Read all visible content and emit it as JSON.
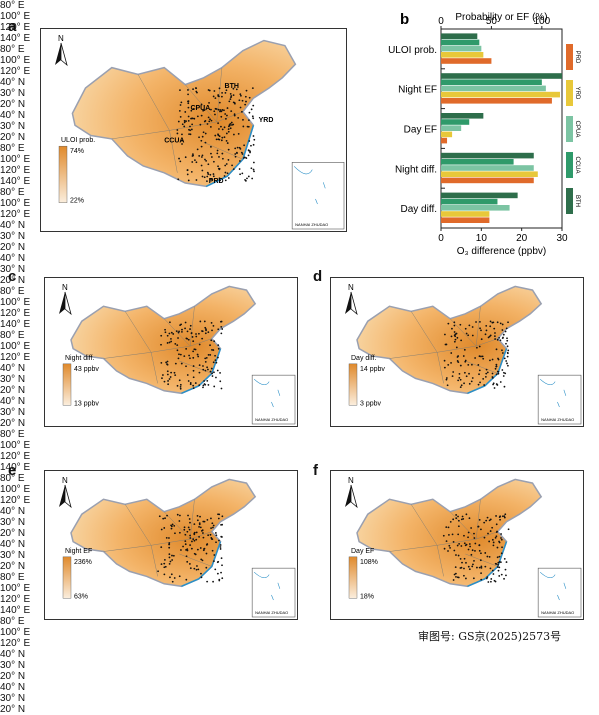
{
  "panels": {
    "a": {
      "letter": "a",
      "top_ticks": [
        "80° E",
        "100° E",
        "120° E",
        "140° E"
      ],
      "bottom_ticks": [
        "80° E",
        "100° E",
        "120° E"
      ],
      "left_ticks": [
        "40° N",
        "30° N",
        "20° N"
      ],
      "right_ticks": [
        "40° N",
        "30° N",
        "20° N"
      ],
      "legend_title": "ULOI prob.",
      "legend_max": "74%",
      "legend_min": "22%",
      "cities": [
        "BTH",
        "YRD",
        "CPUA",
        "CCUA",
        "PRD"
      ],
      "north": "N",
      "inset_label": "NANHAI ZHUDAO"
    },
    "c": {
      "letter": "c",
      "top_ticks": [
        "80° E",
        "100° E",
        "120° E",
        "140° E"
      ],
      "bottom_ticks": [
        "80° E",
        "100° E",
        "120° E"
      ],
      "left_ticks": [
        "40° N",
        "30° N",
        "20° N"
      ],
      "right_ticks": [
        "40° N",
        "30° N",
        "20° N"
      ],
      "legend_title": "Night diff.",
      "legend_max": "43 ppbv",
      "legend_min": "13 ppbv",
      "north": "N",
      "inset_label": "NANHAI ZHUDAO"
    },
    "d": {
      "letter": "d",
      "top_ticks": [
        "80° E",
        "100° E",
        "120° E",
        "140° E"
      ],
      "bottom_ticks": [
        "80° E",
        "100° E",
        "120° E"
      ],
      "left_ticks": [
        "40° N",
        "30° N",
        "20° N"
      ],
      "right_ticks": [
        "40° N",
        "30° N",
        "20° N"
      ],
      "legend_title": "Day diff.",
      "legend_max": "14 ppbv",
      "legend_min": "3 ppbv",
      "north": "N",
      "inset_label": "NANHAI ZHUDAO"
    },
    "e": {
      "letter": "e",
      "top_ticks": [
        "80° E",
        "100° E",
        "120° E",
        "140° E"
      ],
      "bottom_ticks": [
        "80° E",
        "100° E",
        "120° E"
      ],
      "left_ticks": [
        "40° N",
        "30° N",
        "20° N"
      ],
      "right_ticks": [
        "40° N",
        "30° N",
        "20° N"
      ],
      "legend_title": "Night EF",
      "legend_max": "236%",
      "legend_min": "63%",
      "north": "N",
      "inset_label": "NANHAI ZHUDAO"
    },
    "f": {
      "letter": "f",
      "top_ticks": [
        "80° E",
        "100° E",
        "120° E",
        "140° E"
      ],
      "bottom_ticks": [
        "80° E",
        "100° E",
        "120° E"
      ],
      "left_ticks": [
        "40° N",
        "30° N",
        "20° N"
      ],
      "right_ticks": [
        "40° N",
        "30° N",
        "20° N"
      ],
      "legend_title": "Day EF",
      "legend_max": "108%",
      "legend_min": "18%",
      "north": "N",
      "inset_label": "NANHAI ZHUDAO"
    }
  },
  "caption": "审图号: GS京(2025)2573号",
  "colors": {
    "map_fill": "#f3b367",
    "map_light": "#f8d8a8",
    "map_dark": "#e08a2c",
    "border": "#9aa0b0",
    "coast": "#2a8fc7",
    "BTH": "#2e6e4b",
    "CCUA": "#2f9a6a",
    "CPUA": "#7cc4a3",
    "YRD": "#e8c83a",
    "PRD": "#e06a2a"
  },
  "chart_data": {
    "type": "bar",
    "letter": "b",
    "orientation": "horizontal",
    "top_axis_label": "Probability or EF (%)",
    "top_ticks": [
      "0",
      "50",
      "100"
    ],
    "top_range": [
      0,
      120
    ],
    "xlabel": "O₃ difference (ppbv)",
    "bottom_ticks": [
      "0",
      "10",
      "20",
      "30"
    ],
    "bottom_range": [
      0,
      30
    ],
    "categories": [
      "ULOI prob.",
      "Night EF",
      "Day EF",
      "Night diff.",
      "Day diff."
    ],
    "category_scale": [
      "top",
      "top",
      "top",
      "bottom",
      "bottom"
    ],
    "series": [
      {
        "name": "BTH",
        "values": [
          36,
          120,
          42,
          23,
          19
        ]
      },
      {
        "name": "CCUA",
        "values": [
          38,
          100,
          28,
          18,
          14
        ]
      },
      {
        "name": "CPUA",
        "values": [
          40,
          104,
          20,
          23,
          17
        ]
      },
      {
        "name": "YRD",
        "values": [
          42,
          118,
          11,
          24,
          12
        ]
      },
      {
        "name": "PRD",
        "values": [
          50,
          110,
          6,
          23,
          12
        ]
      }
    ],
    "legend_position": "right"
  }
}
